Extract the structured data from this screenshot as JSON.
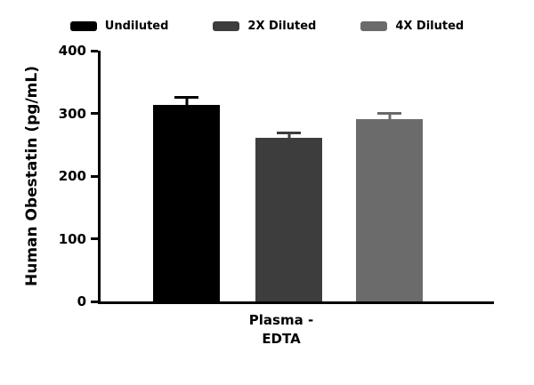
{
  "chart_data": {
    "type": "bar",
    "title": "",
    "categories": [
      "Plasma - EDTA"
    ],
    "series": [
      {
        "name": "Undiluted",
        "color": "#000000",
        "values": [
          313
        ],
        "errors": [
          10
        ]
      },
      {
        "name": "2X Diluted",
        "color": "#3d3d3d",
        "values": [
          261
        ],
        "errors": [
          6
        ]
      },
      {
        "name": "4X Diluted",
        "color": "#6b6b6b",
        "values": [
          291
        ],
        "errors": [
          7
        ]
      }
    ],
    "ylabel": "Human Obestatin (pg/mL)",
    "ylim": [
      0,
      400
    ],
    "yticks": [
      0,
      100,
      200,
      300,
      400
    ],
    "xlabel_lines": {
      "0": "Plasma -",
      "1": "EDTA"
    },
    "legend_position": "top",
    "grid": false
  }
}
